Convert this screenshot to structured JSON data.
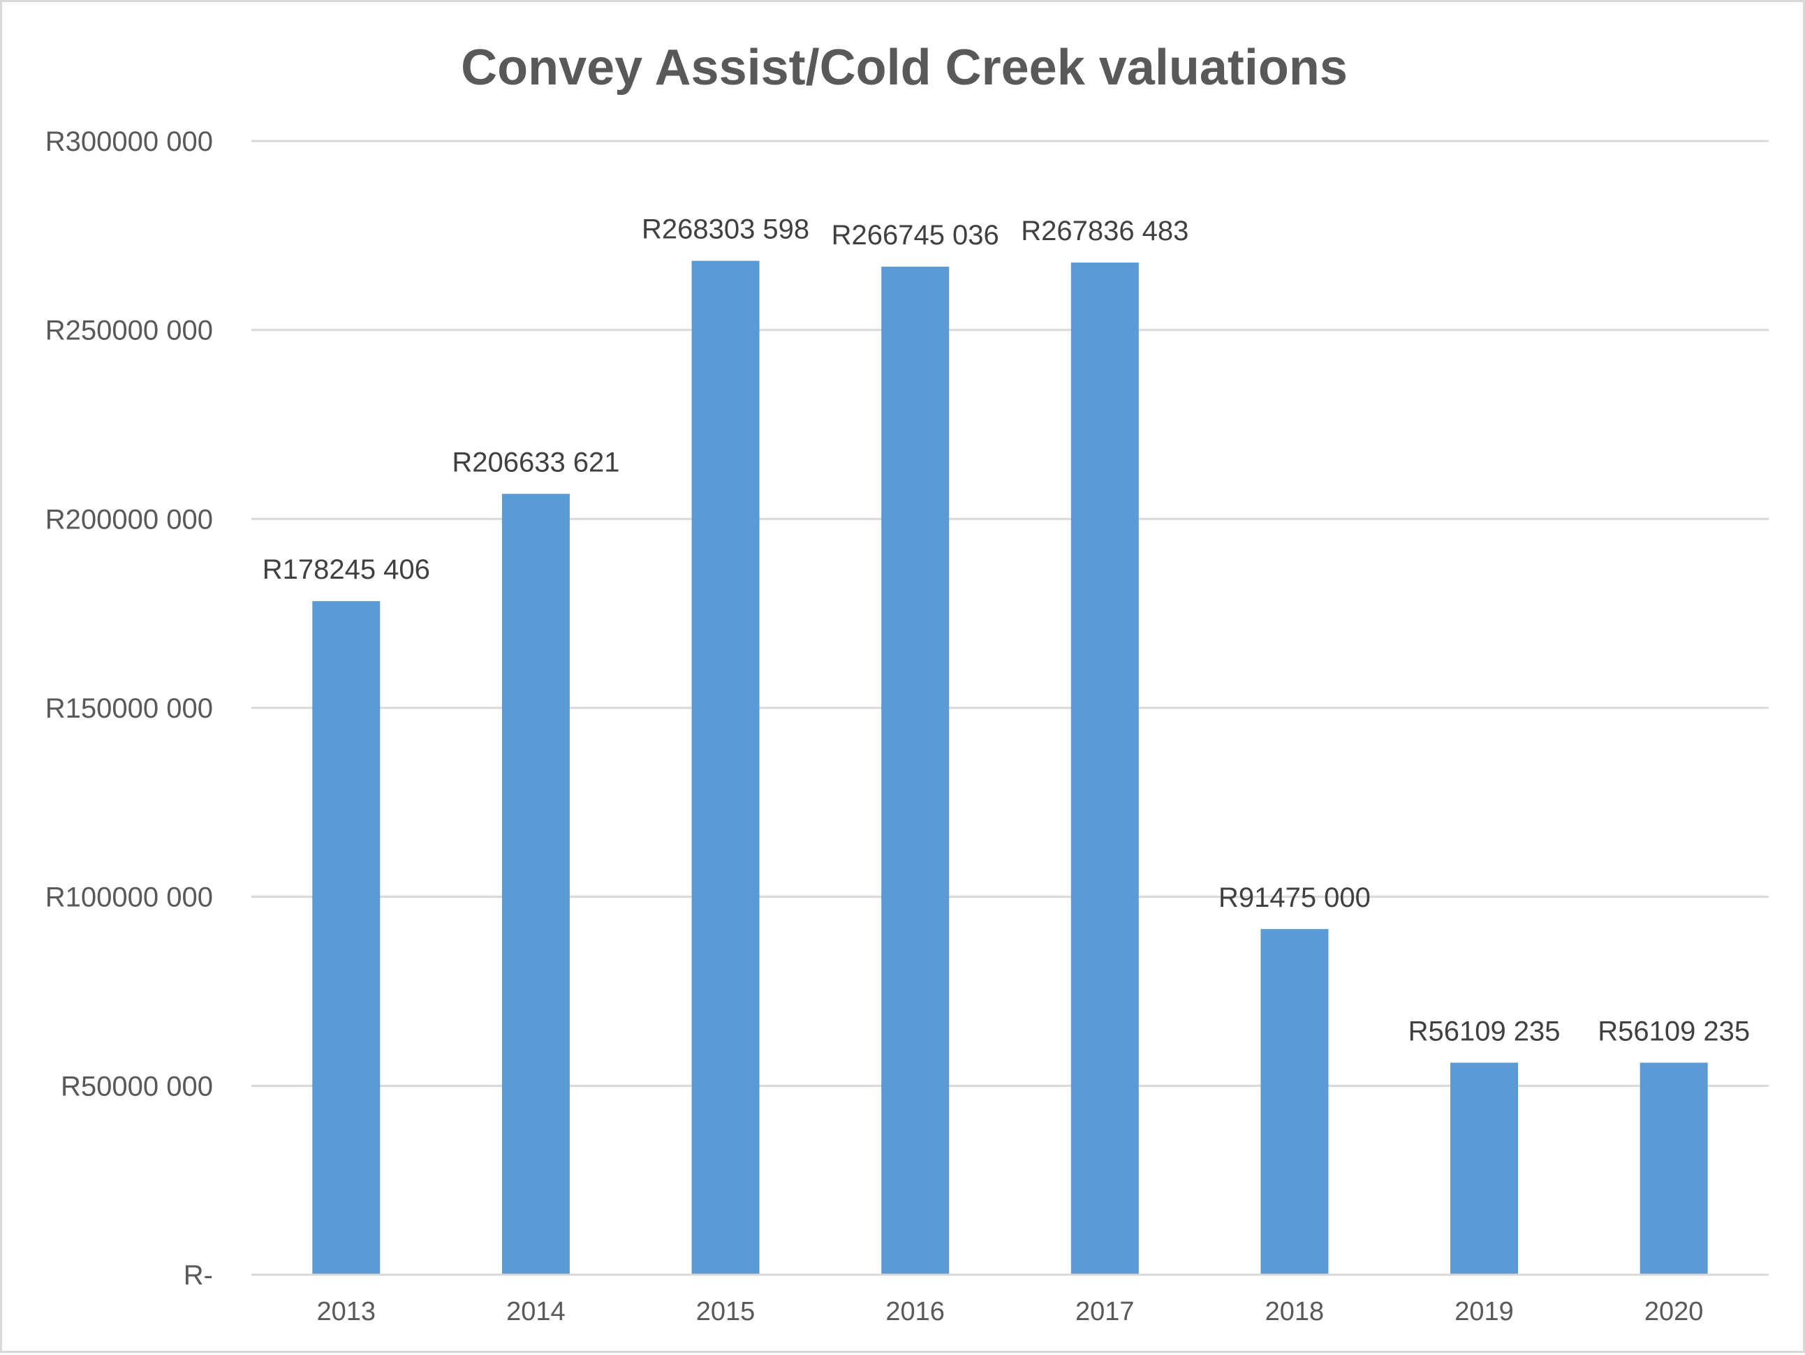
{
  "chart_data": {
    "type": "bar",
    "title": "Convey Assist/Cold Creek valuations",
    "xlabel": "",
    "ylabel": "",
    "categories": [
      "2013",
      "2014",
      "2015",
      "2016",
      "2017",
      "2018",
      "2019",
      "2020"
    ],
    "values": [
      178245406,
      206633621,
      268303598,
      266745036,
      267836483,
      91475000,
      56109235,
      56109235
    ],
    "data_labels": [
      "R178245 406",
      "R206633 621",
      "R268303 598",
      "R266745 036",
      "R267836 483",
      "R91475 000",
      "R56109 235",
      "R56109 235"
    ],
    "ylim": [
      0,
      300000000
    ],
    "y_ticks": [
      0,
      50000000,
      100000000,
      150000000,
      200000000,
      250000000,
      300000000
    ],
    "y_tick_labels": [
      "R-",
      "R50000 000",
      "R100000 000",
      "R150000 000",
      "R200000 000",
      "R250000 000",
      "R300000 000"
    ],
    "grid": true,
    "legend": "none",
    "colors": {
      "bar": "#5b9bd5",
      "grid": "#d9d9d9",
      "title": "#595959",
      "tick_text": "#595959",
      "label_text": "#404040"
    }
  }
}
